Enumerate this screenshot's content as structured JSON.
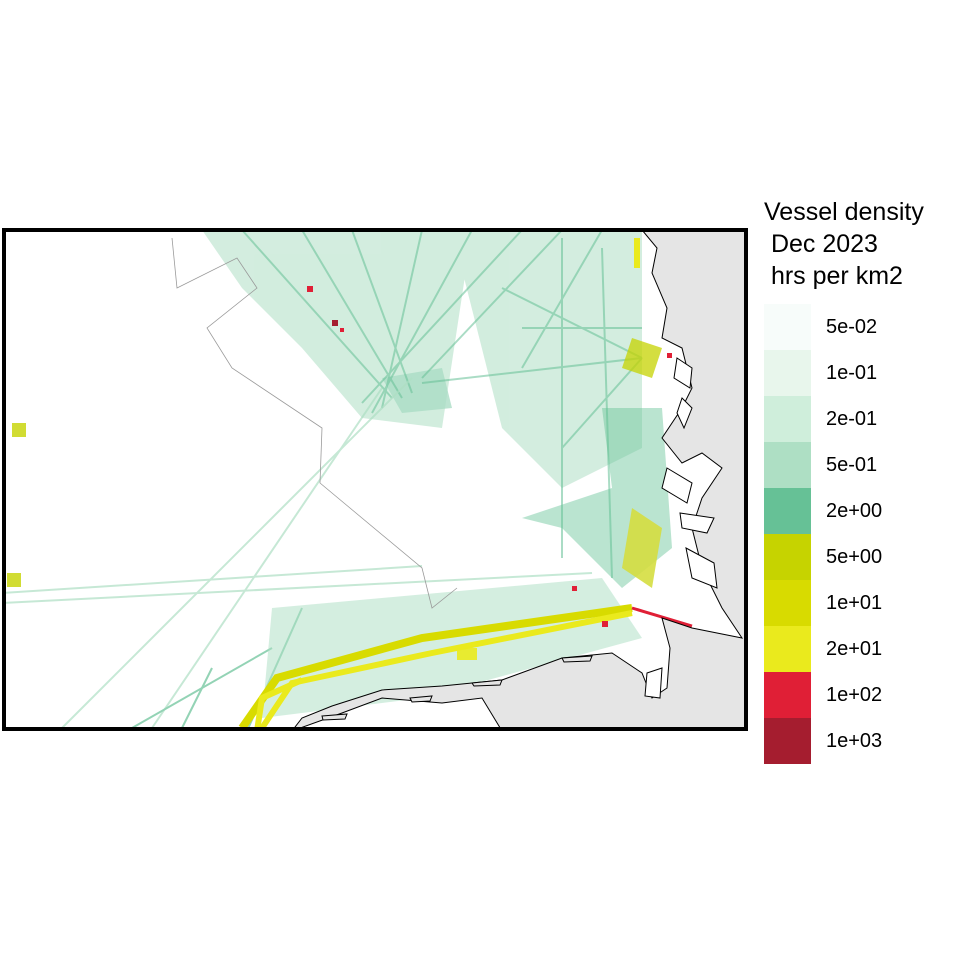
{
  "legend": {
    "title": "Vessel density\n Dec 2023\n hrs per km2",
    "bins": [
      {
        "label": "5e-02",
        "color": "#f7fcfa"
      },
      {
        "label": "1e-01",
        "color": "#e8f6ec"
      },
      {
        "label": "2e-01",
        "color": "#cfeedb"
      },
      {
        "label": "5e-01",
        "color": "#aedfc4"
      },
      {
        "label": "2e+00",
        "color": "#66c196"
      },
      {
        "label": "5e+00",
        "color": "#c6d300"
      },
      {
        "label": "1e+01",
        "color": "#d8db00"
      },
      {
        "label": "2e+01",
        "color": "#eaea1d"
      },
      {
        "label": "1e+02",
        "color": "#e01f36"
      },
      {
        "label": "1e+03",
        "color": "#a51d2f"
      }
    ]
  },
  "map": {
    "land_color": "#e5e5e5",
    "sea_color": "#ffffff",
    "frame_color": "#000000"
  }
}
